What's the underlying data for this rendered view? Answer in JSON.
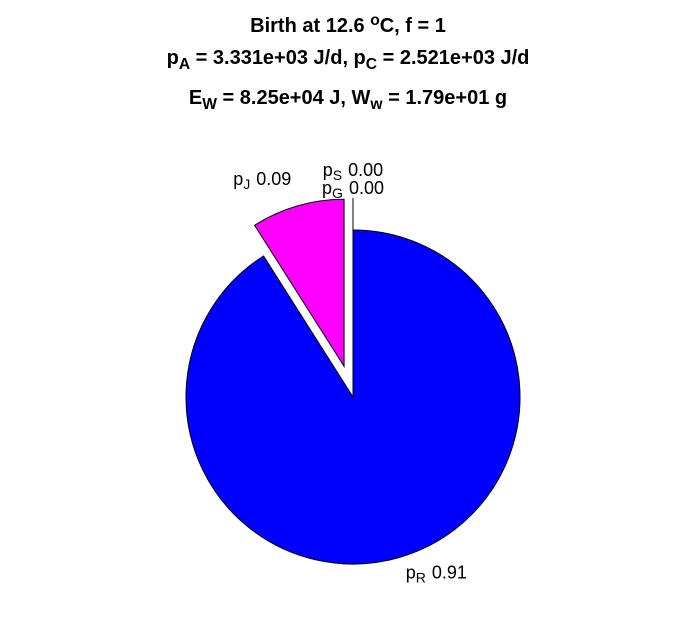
{
  "chart_data": {
    "type": "pie",
    "title": [
      [
        {
          "text": "Birth at 12.6 "
        },
        {
          "text": "o",
          "shift": "sup"
        },
        {
          "text": "C, f = 1"
        }
      ],
      [
        {
          "text": "p"
        },
        {
          "text": "A",
          "shift": "sub"
        },
        {
          "text": " = 3.331e+03 J/d, p"
        },
        {
          "text": "C",
          "shift": "sub"
        },
        {
          "text": " = 2.521e+03 J/d"
        }
      ],
      [
        {
          "text": "E"
        },
        {
          "text": "W",
          "shift": "sub"
        },
        {
          "text": " = 8.25e+04 J, W"
        },
        {
          "text": "w",
          "shift": "sub"
        },
        {
          "text": " = 1.79e+01 g"
        }
      ]
    ],
    "categories": [
      [
        {
          "text": "p"
        },
        {
          "text": "S",
          "shift": "sub"
        }
      ],
      [
        {
          "text": "p"
        },
        {
          "text": "G",
          "shift": "sub"
        }
      ],
      [
        {
          "text": "p"
        },
        {
          "text": "J",
          "shift": "sub"
        }
      ],
      [
        {
          "text": "p"
        },
        {
          "text": "R",
          "shift": "sub"
        }
      ]
    ],
    "values": [
      0.0,
      0.0,
      0.09,
      0.91
    ],
    "value_labels": [
      "0.00",
      "0.00",
      "0.09",
      "0.91"
    ],
    "colors": [
      "#ffff00",
      "#00ffff",
      "#ff00ff",
      "#0000ff"
    ],
    "explode": [
      true,
      true,
      true,
      false
    ]
  }
}
